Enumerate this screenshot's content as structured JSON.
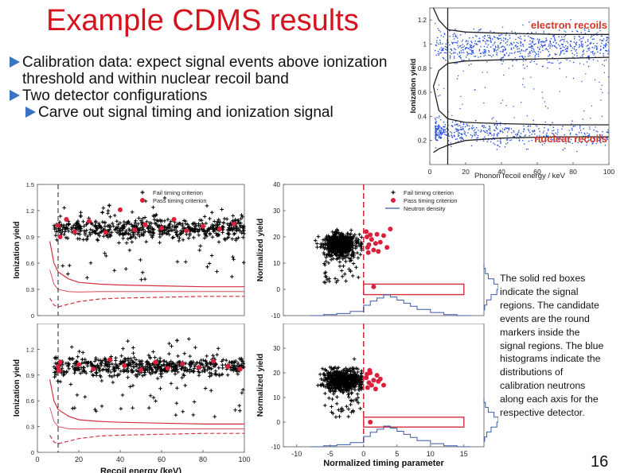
{
  "slide": {
    "title": "Example CDMS results",
    "bullets": [
      {
        "level": 1,
        "text": "Calibration data: expect signal events above ionization threshold and within nuclear recoil band"
      },
      {
        "level": 1,
        "text": "Two detector configurations"
      },
      {
        "level": 2,
        "text": "Carve out signal timing and ionization signal"
      }
    ],
    "caption": "The solid red boxes indicate the signal regions. The candidate events are the round markers inside the signal regions. The blue histograms indicate the distributions of calibration neutrons along each axis for the respective detector.",
    "page_number": "16"
  },
  "colors": {
    "title": "#d5131e",
    "bullet": "#3a74c0",
    "band": "#d23040",
    "pass": "#dc1f3c",
    "electron": "#2850d8",
    "histogram": "#3a5aa8"
  },
  "chart_data": [
    {
      "id": "ionization-yield-inset",
      "type": "scatter",
      "xlabel": "Phonon recoil energy / keV",
      "ylabel": "Ionization yield",
      "xlim": [
        0,
        100
      ],
      "ylim": [
        0,
        1.3
      ],
      "x_ticks": [
        "0",
        "20",
        "40",
        "60",
        "80",
        "100"
      ],
      "y_ticks": [
        "0.2",
        "0.4",
        "0.6",
        "0.8",
        "1",
        "1.2"
      ],
      "annotations": [
        "electron recoils",
        "nuclear recoils"
      ],
      "threshold_keV": 10,
      "bands": {
        "electron": {
          "x": [
            2,
            5,
            10,
            20,
            40,
            70,
            100
          ],
          "upper": [
            1.3,
            1.2,
            1.12,
            1.1,
            1.09,
            1.08,
            1.08
          ],
          "lower": [
            0.65,
            0.78,
            0.84,
            0.86,
            0.87,
            0.88,
            0.89
          ]
        },
        "nuclear": {
          "x": [
            2,
            5,
            10,
            20,
            40,
            70,
            100
          ],
          "upper": [
            0.65,
            0.45,
            0.38,
            0.35,
            0.34,
            0.33,
            0.33
          ],
          "lower": [
            0.1,
            0.13,
            0.16,
            0.2,
            0.22,
            0.23,
            0.23
          ]
        }
      },
      "series": [
        {
          "name": "electron recoils",
          "x_range": [
            3,
            100
          ],
          "y_center": 0.98,
          "y_spread": 0.07
        },
        {
          "name": "nuclear recoils",
          "x_range": [
            3,
            100
          ],
          "y_center": 0.27,
          "y_spread": 0.05
        }
      ]
    },
    {
      "id": "yield-vs-energy-top",
      "type": "scatter",
      "xlabel": "",
      "ylabel": "Ionization yield",
      "xlim": [
        0,
        100
      ],
      "ylim": [
        0,
        1.5
      ],
      "x_ticks": [],
      "y_ticks": [
        "0",
        "0.3",
        "0.6",
        "0.9",
        "1.2",
        "1.5"
      ],
      "legend": [
        "Fail timing criterion",
        "Pass timing criterion"
      ],
      "legend_position": "top-right",
      "threshold_keV": 10,
      "band": {
        "x": [
          6,
          8,
          10,
          15,
          20,
          30,
          40,
          60,
          80,
          100
        ],
        "upper": [
          0.85,
          0.6,
          0.5,
          0.42,
          0.38,
          0.36,
          0.35,
          0.34,
          0.33,
          0.33
        ],
        "lower": [
          0.2,
          0.12,
          0.1,
          0.13,
          0.16,
          0.19,
          0.2,
          0.21,
          0.22,
          0.22
        ]
      },
      "series": [
        {
          "name": "Fail timing criterion",
          "x_range": [
            8,
            100
          ],
          "y_center": 1.0,
          "y_spread": 0.06
        },
        {
          "name": "Pass timing criterion",
          "points": [
            [
              10,
              1.03
            ],
            [
              18,
              0.96
            ],
            [
              25,
              1.08
            ],
            [
              33,
              0.95
            ],
            [
              40,
              1.21
            ],
            [
              47,
              0.98
            ],
            [
              52,
              1.04
            ],
            [
              60,
              1.0
            ],
            [
              66,
              1.1
            ],
            [
              72,
              0.97
            ],
            [
              80,
              1.02
            ],
            [
              88,
              0.99
            ],
            [
              95,
              1.05
            ],
            [
              11,
              0.9
            ],
            [
              14,
              1.1
            ]
          ]
        }
      ]
    },
    {
      "id": "yield-vs-energy-bottom",
      "type": "scatter",
      "xlabel": "Recoil energy (keV)",
      "ylabel": "Ionization yield",
      "xlim": [
        0,
        100
      ],
      "ylim": [
        0,
        1.5
      ],
      "x_ticks": [
        "0",
        "20",
        "40",
        "60",
        "80",
        "100"
      ],
      "y_ticks": [
        "0",
        "0.3",
        "0.6",
        "0.9",
        "1.2"
      ],
      "threshold_keV": 10,
      "band": {
        "x": [
          6,
          8,
          10,
          15,
          20,
          30,
          40,
          60,
          80,
          100
        ],
        "upper": [
          0.85,
          0.6,
          0.5,
          0.42,
          0.38,
          0.36,
          0.35,
          0.34,
          0.33,
          0.33
        ],
        "lower": [
          0.2,
          0.12,
          0.1,
          0.13,
          0.16,
          0.19,
          0.2,
          0.21,
          0.22,
          0.22
        ]
      },
      "series": [
        {
          "name": "Fail timing criterion",
          "x_range": [
            8,
            100
          ],
          "y_center": 1.0,
          "y_spread": 0.06
        },
        {
          "name": "Pass timing criterion",
          "points": [
            [
              10,
              1.0
            ],
            [
              10.5,
              0.95
            ],
            [
              11,
              1.05
            ],
            [
              20,
              1.02
            ],
            [
              27,
              0.97
            ],
            [
              35,
              1.08
            ],
            [
              42,
              1.01
            ],
            [
              50,
              0.96
            ],
            [
              57,
              1.05
            ],
            [
              63,
              0.98
            ],
            [
              70,
              1.03
            ],
            [
              78,
              0.99
            ],
            [
              85,
              1.06
            ],
            [
              92,
              1.0
            ],
            [
              98,
              0.97
            ]
          ]
        }
      ]
    },
    {
      "id": "normalized-yield-top",
      "type": "scatter",
      "xlabel": "",
      "ylabel": "Normalized yield",
      "xlim": [
        -12,
        18
      ],
      "ylim": [
        -10,
        40
      ],
      "x_ticks": [],
      "y_ticks": [
        "-10",
        "0",
        "10",
        "20",
        "30",
        "40"
      ],
      "legend": [
        "Fail timing criterion",
        "Pass timing criterion",
        "Neutron density"
      ],
      "legend_position": "top-right",
      "timing_cut": 0,
      "signal_box": {
        "x": [
          0,
          15
        ],
        "y": [
          -2,
          2
        ]
      },
      "series": [
        {
          "name": "Fail timing criterion",
          "center": [
            -3.5,
            17
          ],
          "spread": [
            1.2,
            2.2
          ]
        },
        {
          "name": "Pass timing criterion",
          "points": [
            [
              0.5,
              20
            ],
            [
              1.2,
              19
            ],
            [
              0.8,
              17
            ],
            [
              2.0,
              21
            ],
            [
              1.5,
              15
            ],
            [
              3.0,
              20.5
            ],
            [
              0.7,
              14
            ],
            [
              1.8,
              17.5
            ],
            [
              4.0,
              23
            ],
            [
              0.4,
              22
            ],
            [
              2.5,
              18
            ],
            [
              1.0,
              20.8
            ],
            [
              3.5,
              16
            ],
            [
              0.6,
              16
            ],
            [
              2.2,
              14.5
            ],
            [
              1.5,
              1.0
            ]
          ]
        }
      ],
      "timing_histogram": {
        "x": [
          -8,
          -6,
          -4,
          -2,
          0,
          1,
          2,
          3,
          4,
          5,
          6,
          7,
          8,
          10,
          12,
          14
        ],
        "density": [
          0.0,
          0.05,
          0.1,
          0.2,
          0.5,
          0.7,
          0.85,
          1.0,
          0.9,
          0.75,
          0.6,
          0.45,
          0.3,
          0.15,
          0.05,
          0.0
        ]
      },
      "yield_histogram": {
        "y": [
          -8,
          -6,
          -4,
          -2,
          0,
          2,
          4,
          6,
          8
        ],
        "density": [
          0.05,
          0.2,
          0.5,
          0.9,
          1.0,
          0.7,
          0.3,
          0.1,
          0.0
        ]
      }
    },
    {
      "id": "normalized-yield-bottom",
      "type": "scatter",
      "xlabel": "Normalized timing parameter",
      "ylabel": "Normalized yield",
      "xlim": [
        -12,
        18
      ],
      "ylim": [
        -10,
        40
      ],
      "x_ticks": [
        "-10",
        "-5",
        "0",
        "5",
        "10",
        "15"
      ],
      "y_ticks": [
        "-10",
        "0",
        "10",
        "20",
        "30"
      ],
      "timing_cut": 0,
      "signal_box": {
        "x": [
          0,
          15
        ],
        "y": [
          -2,
          2
        ]
      },
      "series": [
        {
          "name": "Fail timing criterion",
          "center": [
            -3,
            17
          ],
          "spread": [
            1.5,
            2.0
          ]
        },
        {
          "name": "Pass timing criterion",
          "points": [
            [
              0.4,
              18
            ],
            [
              0.8,
              16
            ],
            [
              1.0,
              20
            ],
            [
              1.5,
              17
            ],
            [
              0.6,
              14
            ],
            [
              2.0,
              19
            ],
            [
              1.2,
              15
            ],
            [
              0.9,
              21
            ],
            [
              2.5,
              17.5
            ],
            [
              3.0,
              15
            ],
            [
              1.8,
              13.5
            ],
            [
              0.5,
              19.5
            ],
            [
              2.2,
              16.5
            ],
            [
              1.0,
              0
            ]
          ]
        }
      ],
      "timing_histogram": {
        "x": [
          -8,
          -6,
          -4,
          -2,
          0,
          1,
          2,
          3,
          4,
          5,
          6,
          7,
          8,
          10,
          12,
          14
        ],
        "density": [
          0.0,
          0.05,
          0.1,
          0.2,
          0.5,
          0.7,
          0.85,
          1.0,
          0.9,
          0.75,
          0.6,
          0.45,
          0.3,
          0.15,
          0.05,
          0.0
        ]
      },
      "yield_histogram": {
        "y": [
          -8,
          -6,
          -4,
          -2,
          0,
          2,
          4,
          6,
          8
        ],
        "density": [
          0.05,
          0.2,
          0.5,
          0.9,
          1.0,
          0.7,
          0.3,
          0.1,
          0.0
        ]
      }
    }
  ]
}
